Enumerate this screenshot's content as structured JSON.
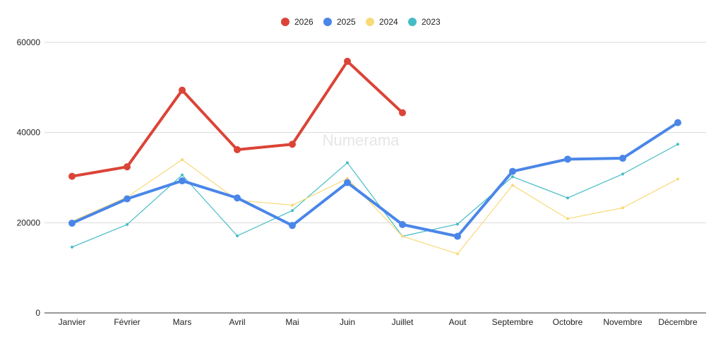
{
  "watermark": "Numerama",
  "chart_data": {
    "type": "line",
    "title": "",
    "xlabel": "",
    "ylabel": "",
    "ylim": [
      0,
      60000
    ],
    "yticks": [
      "0",
      "20000",
      "40000",
      "60000"
    ],
    "grid": true,
    "legend_position": "top-center",
    "categories": [
      "Janvier",
      "Février",
      "Mars",
      "Avril",
      "Mai",
      "Juin",
      "Juillet",
      "Aout",
      "Septembre",
      "Octobre",
      "Novembre",
      "Décembre"
    ],
    "series": [
      {
        "name": "2026",
        "color": "#db4437",
        "emphasis": "thick",
        "values": [
          30300,
          32400,
          49400,
          36200,
          37400,
          55800,
          44400,
          null,
          null,
          null,
          null,
          null
        ]
      },
      {
        "name": "2025",
        "color": "#4a86e8",
        "emphasis": "thick",
        "values": [
          19900,
          25300,
          29300,
          25500,
          19400,
          28900,
          19600,
          17000,
          31400,
          34100,
          34300,
          42200
        ]
      },
      {
        "name": "2024",
        "color": "#f9d978",
        "emphasis": "thin",
        "values": [
          20300,
          25700,
          34000,
          25000,
          23900,
          29800,
          17000,
          13100,
          28300,
          20900,
          23300,
          29700
        ]
      },
      {
        "name": "2023",
        "color": "#46bdc6",
        "emphasis": "thin",
        "values": [
          14600,
          19600,
          30600,
          17100,
          22700,
          33300,
          17000,
          19700,
          30200,
          25500,
          30800,
          37400
        ]
      }
    ]
  }
}
